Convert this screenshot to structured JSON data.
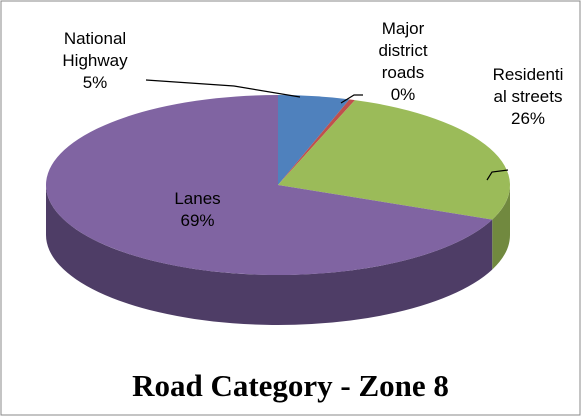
{
  "chart_data": {
    "type": "pie",
    "title": "Road Category - Zone 8",
    "categories": [
      "National Highway",
      "Major district roads",
      "Residential streets",
      "Lanes"
    ],
    "values": [
      5,
      0.4,
      26,
      69
    ],
    "value_labels": [
      "5%",
      "0%",
      "26%",
      "69%"
    ],
    "colors": [
      "#4f81bd",
      "#c0504d",
      "#9bbb59",
      "#8064a2"
    ],
    "side_colors": [
      "#385d8a",
      "#8c3836",
      "#71893f",
      "#4e3d66"
    ]
  }
}
